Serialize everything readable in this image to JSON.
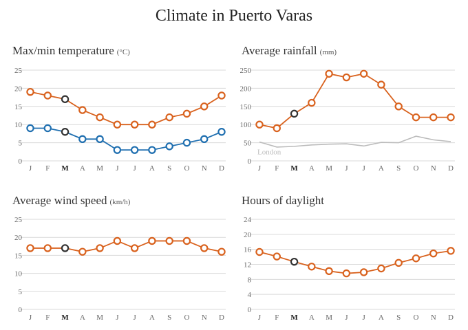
{
  "title": "Climate in Puerto Varas",
  "colors": {
    "orange": "#d9621e",
    "blue": "#1f6fb0",
    "highlight": "#333333",
    "london": "#bbbbbb"
  },
  "chart_data": [
    {
      "type": "line",
      "title": "Max/min temperature",
      "unit": "(°C)",
      "categories": [
        "J",
        "F",
        "M",
        "A",
        "M",
        "J",
        "J",
        "A",
        "S",
        "O",
        "N",
        "D"
      ],
      "highlight_index": 2,
      "yticks": [
        0,
        5,
        10,
        15,
        20,
        25
      ],
      "ylim": [
        0,
        25
      ],
      "series": [
        {
          "name": "Max",
          "color": "#d9621e",
          "values": [
            19,
            18,
            17,
            14,
            12,
            10,
            10,
            10,
            12,
            13,
            15,
            18
          ],
          "markers": true
        },
        {
          "name": "Min",
          "color": "#1f6fb0",
          "values": [
            9,
            9,
            8,
            6,
            6,
            3,
            3,
            3,
            4,
            5,
            6,
            8
          ],
          "markers": true
        }
      ]
    },
    {
      "type": "line",
      "title": "Average rainfall",
      "unit": "(mm)",
      "categories": [
        "J",
        "F",
        "M",
        "A",
        "M",
        "J",
        "J",
        "A",
        "S",
        "O",
        "N",
        "D"
      ],
      "highlight_index": 2,
      "yticks": [
        0,
        50,
        100,
        150,
        200,
        250
      ],
      "ylim": [
        0,
        250
      ],
      "series": [
        {
          "name": "Puerto Varas",
          "color": "#d9621e",
          "values": [
            100,
            90,
            130,
            160,
            240,
            230,
            240,
            210,
            150,
            120,
            120,
            120
          ],
          "markers": true
        },
        {
          "name": "London",
          "color": "#bbbbbb",
          "values": [
            52,
            38,
            40,
            44,
            46,
            47,
            41,
            51,
            50,
            68,
            58,
            53
          ],
          "markers": false,
          "label": "London"
        }
      ]
    },
    {
      "type": "line",
      "title": "Average wind speed",
      "unit": "(km/h)",
      "categories": [
        "J",
        "F",
        "M",
        "A",
        "M",
        "J",
        "J",
        "A",
        "S",
        "O",
        "N",
        "D"
      ],
      "highlight_index": 2,
      "yticks": [
        0,
        5,
        10,
        15,
        20,
        25
      ],
      "ylim": [
        0,
        25
      ],
      "series": [
        {
          "name": "Wind speed",
          "color": "#d9621e",
          "values": [
            17,
            17,
            17,
            16,
            17,
            19,
            17,
            19,
            19,
            19,
            17,
            16
          ],
          "markers": true
        }
      ]
    },
    {
      "type": "line",
      "title": "Hours of daylight",
      "unit": "",
      "categories": [
        "J",
        "F",
        "M",
        "A",
        "M",
        "J",
        "J",
        "A",
        "S",
        "O",
        "N",
        "D"
      ],
      "highlight_index": 2,
      "yticks": [
        0,
        4,
        8,
        12,
        16,
        20,
        24
      ],
      "ylim": [
        0,
        24
      ],
      "series": [
        {
          "name": "Daylight",
          "color": "#d9621e",
          "values": [
            15.3,
            14.1,
            12.7,
            11.4,
            10.2,
            9.6,
            9.9,
            10.9,
            12.4,
            13.6,
            14.9,
            15.6
          ],
          "markers": true
        }
      ]
    }
  ]
}
